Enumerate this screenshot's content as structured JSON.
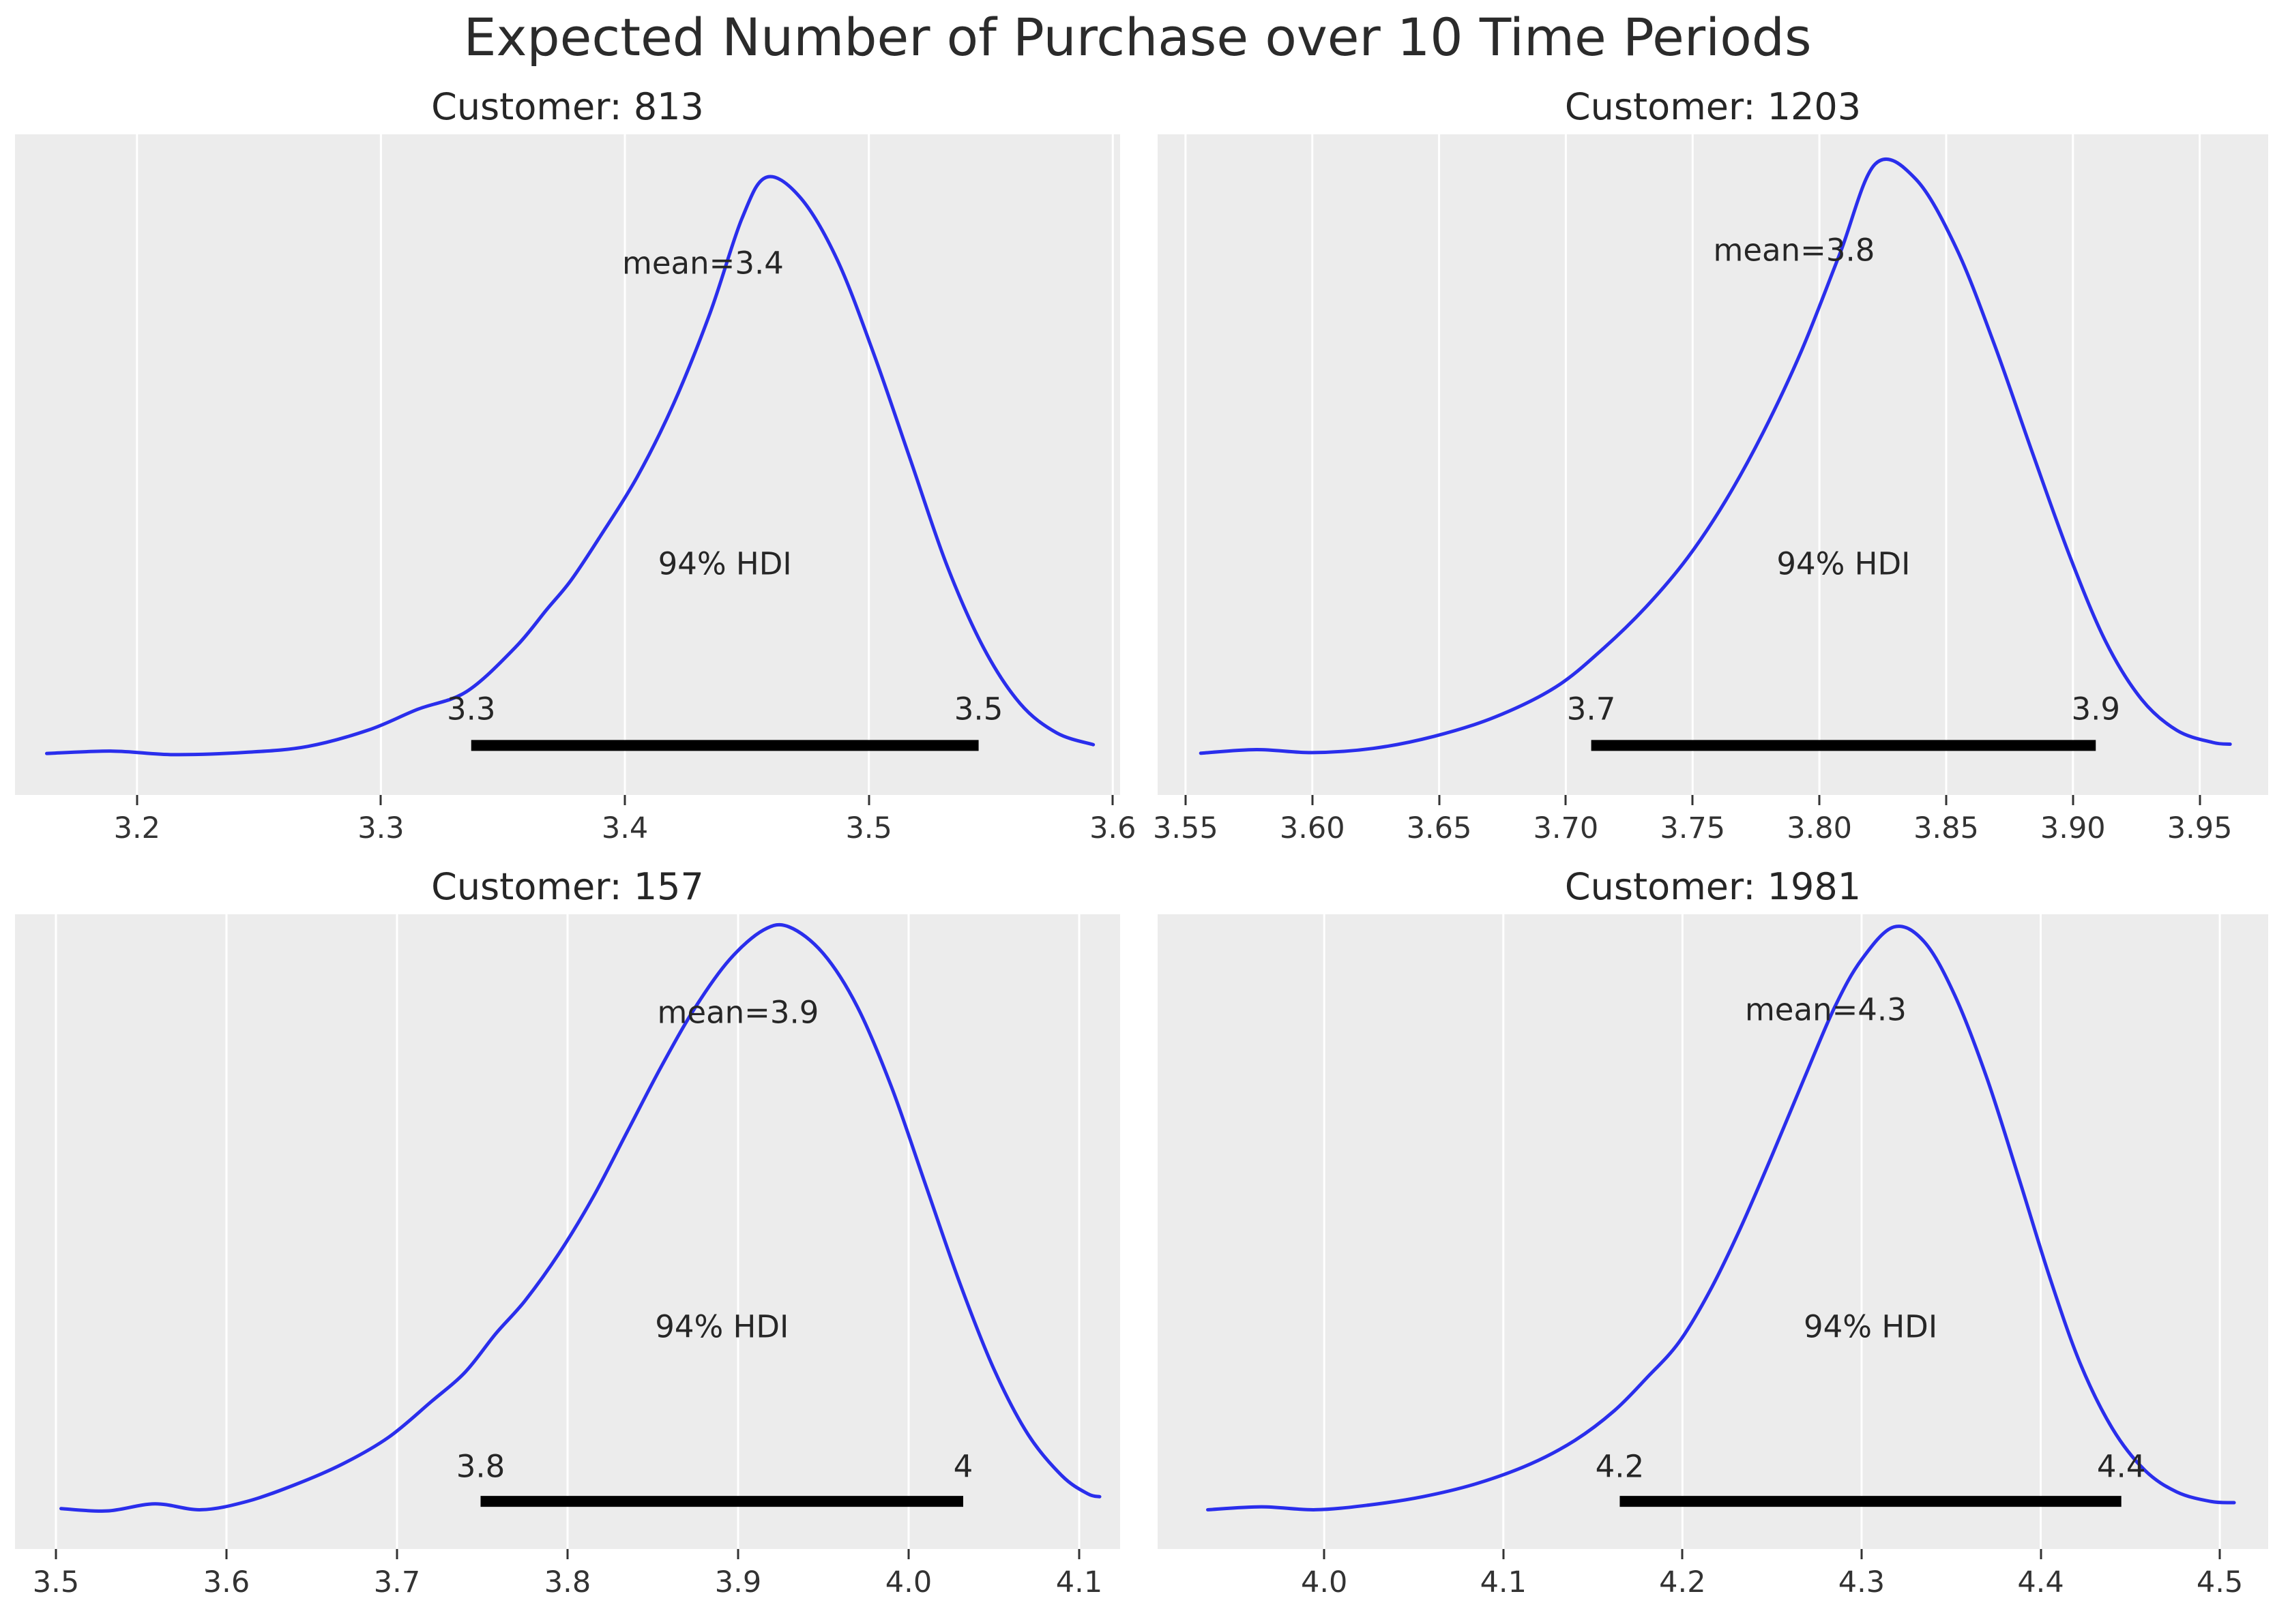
{
  "figure": {
    "title": "Expected Number of Purchase over 10 Time Periods",
    "background_color": "#ffffff",
    "panel_background_color": "#ececec",
    "grid_color": "#ffffff",
    "curve_color": "#2a2eec",
    "hdi_bar_color": "#000000",
    "text_color": "#262626"
  },
  "chart_data": [
    {
      "type": "kde",
      "title": "Customer: 813",
      "mean": 3.4,
      "mean_label": "mean=3.4",
      "mean_label_x": 3.432,
      "mean_label_yfrac": 0.195,
      "hdi_label": "94% HDI",
      "hdi_label_yfrac": 0.65,
      "hdi": [
        3.337,
        3.545
      ],
      "hdi_bound_labels": [
        "3.3",
        "3.5"
      ],
      "hdi_bound_yfrac": 0.87,
      "hdi_bar_yfrac": 0.925,
      "x_range": [
        3.15,
        3.603
      ],
      "x_ticks": [
        {
          "value": 3.2,
          "label": "3.2"
        },
        {
          "value": 3.3,
          "label": "3.3"
        },
        {
          "value": 3.4,
          "label": "3.4"
        },
        {
          "value": 3.5,
          "label": "3.5"
        },
        {
          "value": 3.6,
          "label": "3.6"
        }
      ],
      "peak_yfrac": 0.065,
      "baseline_yfrac": 0.955,
      "density": [
        [
          3.163,
          0.02
        ],
        [
          3.19,
          0.024
        ],
        [
          3.215,
          0.018
        ],
        [
          3.245,
          0.022
        ],
        [
          3.27,
          0.032
        ],
        [
          3.295,
          0.06
        ],
        [
          3.315,
          0.095
        ],
        [
          3.335,
          0.125
        ],
        [
          3.355,
          0.2
        ],
        [
          3.368,
          0.265
        ],
        [
          3.378,
          0.315
        ],
        [
          3.39,
          0.39
        ],
        [
          3.405,
          0.49
        ],
        [
          3.42,
          0.615
        ],
        [
          3.435,
          0.77
        ],
        [
          3.448,
          0.93
        ],
        [
          3.458,
          1.0
        ],
        [
          3.472,
          0.965
        ],
        [
          3.487,
          0.86
        ],
        [
          3.502,
          0.7
        ],
        [
          3.517,
          0.52
        ],
        [
          3.532,
          0.34
        ],
        [
          3.547,
          0.2
        ],
        [
          3.562,
          0.105
        ],
        [
          3.577,
          0.055
        ],
        [
          3.592,
          0.035
        ]
      ]
    },
    {
      "type": "kde",
      "title": "Customer: 1203",
      "mean": 3.8,
      "mean_label": "mean=3.8",
      "mean_label_x": 3.79,
      "mean_label_yfrac": 0.175,
      "hdi_label": "94% HDI",
      "hdi_label_yfrac": 0.65,
      "hdi": [
        3.71,
        3.909
      ],
      "hdi_bound_labels": [
        "3.7",
        "3.9"
      ],
      "hdi_bound_yfrac": 0.87,
      "hdi_bar_yfrac": 0.925,
      "x_range": [
        3.539,
        3.977
      ],
      "x_ticks": [
        {
          "value": 3.55,
          "label": "3.55"
        },
        {
          "value": 3.6,
          "label": "3.60"
        },
        {
          "value": 3.65,
          "label": "3.65"
        },
        {
          "value": 3.7,
          "label": "3.70"
        },
        {
          "value": 3.75,
          "label": "3.75"
        },
        {
          "value": 3.8,
          "label": "3.80"
        },
        {
          "value": 3.85,
          "label": "3.85"
        },
        {
          "value": 3.9,
          "label": "3.90"
        },
        {
          "value": 3.95,
          "label": "3.95"
        }
      ],
      "peak_yfrac": 0.045,
      "baseline_yfrac": 0.955,
      "density": [
        [
          3.556,
          0.02
        ],
        [
          3.578,
          0.026
        ],
        [
          3.6,
          0.021
        ],
        [
          3.624,
          0.028
        ],
        [
          3.648,
          0.048
        ],
        [
          3.672,
          0.08
        ],
        [
          3.696,
          0.13
        ],
        [
          3.715,
          0.195
        ],
        [
          3.732,
          0.265
        ],
        [
          3.748,
          0.345
        ],
        [
          3.763,
          0.44
        ],
        [
          3.778,
          0.555
        ],
        [
          3.793,
          0.69
        ],
        [
          3.808,
          0.85
        ],
        [
          3.822,
          1.0
        ],
        [
          3.838,
          0.975
        ],
        [
          3.854,
          0.86
        ],
        [
          3.869,
          0.7
        ],
        [
          3.884,
          0.52
        ],
        [
          3.899,
          0.345
        ],
        [
          3.913,
          0.205
        ],
        [
          3.927,
          0.11
        ],
        [
          3.941,
          0.058
        ],
        [
          3.955,
          0.038
        ],
        [
          3.962,
          0.035
        ]
      ]
    },
    {
      "type": "kde",
      "title": "Customer: 157",
      "mean": 3.9,
      "mean_label": "mean=3.9",
      "mean_label_x": 3.9,
      "mean_label_yfrac": 0.155,
      "hdi_label": "94% HDI",
      "hdi_label_yfrac": 0.65,
      "hdi": [
        3.749,
        4.032
      ],
      "hdi_bound_labels": [
        "3.8",
        "4"
      ],
      "hdi_bound_yfrac": 0.87,
      "hdi_bar_yfrac": 0.925,
      "x_range": [
        3.476,
        4.124
      ],
      "x_ticks": [
        {
          "value": 3.5,
          "label": "3.5"
        },
        {
          "value": 3.6,
          "label": "3.6"
        },
        {
          "value": 3.7,
          "label": "3.7"
        },
        {
          "value": 3.8,
          "label": "3.8"
        },
        {
          "value": 3.9,
          "label": "3.9"
        },
        {
          "value": 4.0,
          "label": "4.0"
        },
        {
          "value": 4.1,
          "label": "4.1"
        }
      ],
      "peak_yfrac": 0.02,
      "baseline_yfrac": 0.955,
      "density": [
        [
          3.503,
          0.02
        ],
        [
          3.53,
          0.016
        ],
        [
          3.558,
          0.028
        ],
        [
          3.585,
          0.018
        ],
        [
          3.612,
          0.032
        ],
        [
          3.64,
          0.06
        ],
        [
          3.668,
          0.095
        ],
        [
          3.695,
          0.14
        ],
        [
          3.72,
          0.2
        ],
        [
          3.74,
          0.25
        ],
        [
          3.758,
          0.315
        ],
        [
          3.775,
          0.37
        ],
        [
          3.795,
          0.45
        ],
        [
          3.815,
          0.545
        ],
        [
          3.835,
          0.655
        ],
        [
          3.855,
          0.765
        ],
        [
          3.875,
          0.865
        ],
        [
          3.895,
          0.945
        ],
        [
          3.915,
          0.995
        ],
        [
          3.93,
          1.0
        ],
        [
          3.95,
          0.955
        ],
        [
          3.97,
          0.865
        ],
        [
          3.99,
          0.73
        ],
        [
          4.01,
          0.565
        ],
        [
          4.03,
          0.4
        ],
        [
          4.05,
          0.255
        ],
        [
          4.07,
          0.145
        ],
        [
          4.09,
          0.075
        ],
        [
          4.105,
          0.045
        ],
        [
          4.112,
          0.04
        ]
      ]
    },
    {
      "type": "kde",
      "title": "Customer: 1981",
      "mean": 4.3,
      "mean_label": "mean=4.3",
      "mean_label_x": 4.28,
      "mean_label_yfrac": 0.15,
      "hdi_label": "94% HDI",
      "hdi_label_yfrac": 0.65,
      "hdi": [
        4.165,
        4.445
      ],
      "hdi_bound_labels": [
        "4.2",
        "4.4"
      ],
      "hdi_bound_yfrac": 0.87,
      "hdi_bar_yfrac": 0.925,
      "x_range": [
        3.907,
        4.527
      ],
      "x_ticks": [
        {
          "value": 4.0,
          "label": "4.0"
        },
        {
          "value": 4.1,
          "label": "4.1"
        },
        {
          "value": 4.2,
          "label": "4.2"
        },
        {
          "value": 4.3,
          "label": "4.3"
        },
        {
          "value": 4.4,
          "label": "4.4"
        },
        {
          "value": 4.5,
          "label": "4.5"
        }
      ],
      "peak_yfrac": 0.02,
      "baseline_yfrac": 0.955,
      "density": [
        [
          3.935,
          0.018
        ],
        [
          3.965,
          0.023
        ],
        [
          3.995,
          0.018
        ],
        [
          4.025,
          0.026
        ],
        [
          4.055,
          0.04
        ],
        [
          4.085,
          0.062
        ],
        [
          4.115,
          0.095
        ],
        [
          4.14,
          0.135
        ],
        [
          4.162,
          0.185
        ],
        [
          4.18,
          0.24
        ],
        [
          4.198,
          0.3
        ],
        [
          4.215,
          0.385
        ],
        [
          4.232,
          0.49
        ],
        [
          4.25,
          0.615
        ],
        [
          4.268,
          0.745
        ],
        [
          4.285,
          0.865
        ],
        [
          4.3,
          0.945
        ],
        [
          4.318,
          1.0
        ],
        [
          4.335,
          0.975
        ],
        [
          4.352,
          0.885
        ],
        [
          4.37,
          0.745
        ],
        [
          4.388,
          0.575
        ],
        [
          4.405,
          0.41
        ],
        [
          4.422,
          0.265
        ],
        [
          4.44,
          0.155
        ],
        [
          4.458,
          0.085
        ],
        [
          4.476,
          0.048
        ],
        [
          4.495,
          0.032
        ],
        [
          4.508,
          0.03
        ]
      ]
    }
  ]
}
